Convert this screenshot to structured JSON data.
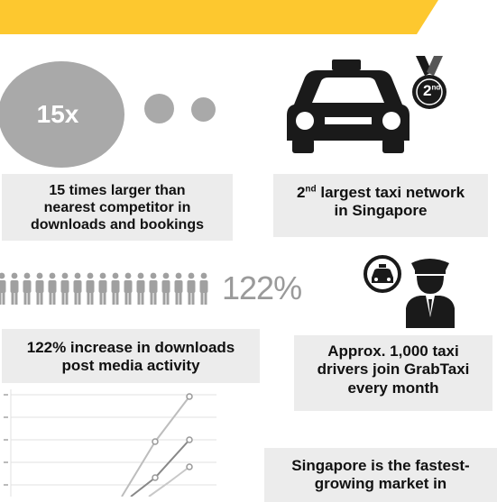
{
  "stat_15x": {
    "circle_label": "15x",
    "caption_line1": "15 times larger than",
    "caption_line2": "nearest competitor in",
    "caption_line3": "downloads and bookings"
  },
  "taxi_network": {
    "badge_number": "2",
    "badge_suffix": "nd",
    "caption_rank": "2",
    "caption_rank_suffix": "nd",
    "caption_line1_rest": " largest taxi network",
    "caption_line2": "in Singapore"
  },
  "downloads": {
    "percent_label": "122%",
    "caption_line1": "122% increase in downloads",
    "caption_line2": "post media activity"
  },
  "drivers": {
    "caption_line1": "Approx. 1,000 taxi",
    "caption_line2": "drivers join GrabTaxi",
    "caption_line3": "every month"
  },
  "market": {
    "caption_line1": "Singapore is the fastest-",
    "caption_line2": "growing market in"
  },
  "colors": {
    "banner": "#fdc82f",
    "circle": "#a9a9a9",
    "caption_bg": "#ececec",
    "icon_dark": "#1a1a1a",
    "people": "#a0a0a0"
  }
}
